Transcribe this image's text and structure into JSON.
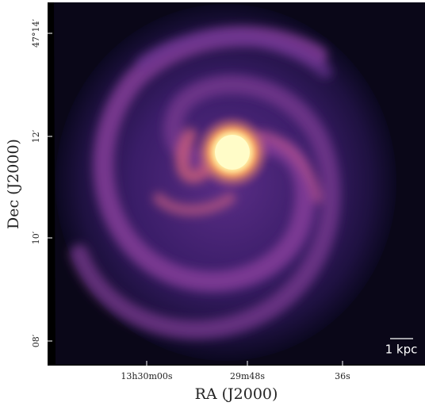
{
  "figure": {
    "x_label": "RA (J2000)",
    "y_label": "Dec (J2000)",
    "x_tick_labels": [
      "13h30m00s",
      "29m48s",
      "36s"
    ],
    "y_tick_labels": [
      "47°14′",
      "12′",
      "10′",
      "08′"
    ],
    "scale_bar_label": "1 kpc"
  }
}
